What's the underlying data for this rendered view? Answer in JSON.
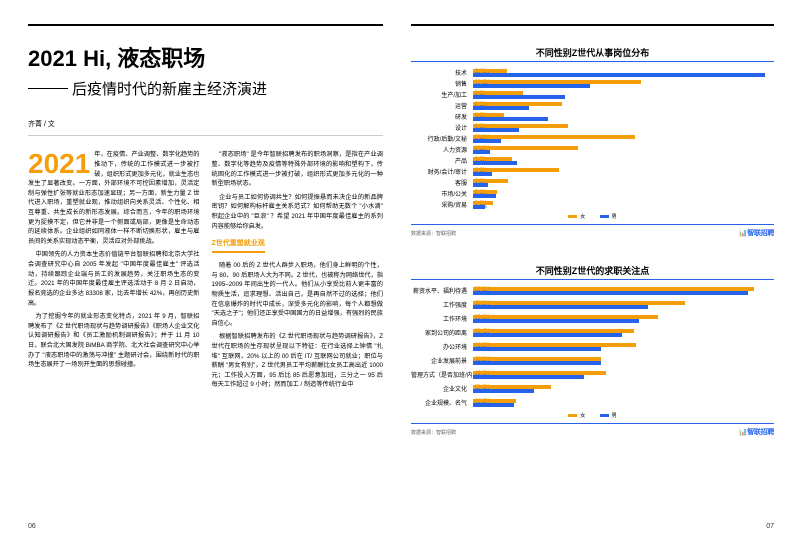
{
  "title_year": "2021",
  "title_prefix": " Hi, ",
  "title_main": "液态职场",
  "subtitle": "后疫情时代的新雇主经济演进",
  "author": "齐菁 / 文",
  "page_left": "06",
  "page_right": "07",
  "dropcap": "2021",
  "para_left_1": "年，在疫情、产业调整、数字化趋势的推动下，传统的工作模式进一步被打破，组织形式更加多元化，就业生态也发生了显著改变。一方面，外部环境不可控因素增加，灵活定制与弹性扩张等就业形态加速显现；另一方面，新生力量 Z 世代进入职场，重塑就业观，推动组织向关系灵活、个性化、相互尊重、共生成长的新形态发展。综合而言，今年的职场环境更为捉摸不定，但它并非是一个侧面或局部，更像是生命动态的延续体系。企业组织如同液体一样不断切换形状，雇主与雇员间的关系实现动态平衡，灵活应对外部挑战。",
  "para_left_2": "中国领先的人力资本生态价值链平台智联招聘和北京大学社会调查研究中心自 2005 年发起 \"中国年度最佳雇主\" 评选活动，持续跟踪企业端与员工的发展趋势，关注职场生态的变迁。2021 年的中国年度最佳雇主评选活动于 8 月 2 日启动，报名竞选的企业多达 83308 家，比去年增长 42%，再创历史新高。",
  "para_left_3": "为了挖掘今年的就业形态变化特点，2021 年 9 月，智联招聘发布了《Z 世代职场现状与趋势调研报告》《职场人企业文化认知调研报告》和《员工激励机制调研报告》；并于 11 月 10 日，联合北大国发院 BiMBA 商学院、北大社会调查研究中心举办了 \"液态职场中的激荡与冲撞\" 主题研讨会，围绕新时代的职场生态展开了一场别开生面的思想碰撞。",
  "para_right_1": "\"液态职场\" 是今年智联招聘发布的职场洞察，是指在产业调整、数字化等趋势及疫情等特殊外部环境的影响和塑构下，传统固化的工作模式进一步被打破，组织形式更加多元化的一种新型职场状态。",
  "para_right_2": "企业与员工如何协调共生？如何提振悬而未决企业的新品牌密钥？如何解构标杆雇主关系范式？如何帮助无数个 \"小水滴\" 积起企业中的 \"巨浪\" ？希望 2021 年中国年度最佳雇主的系列内容能够给你启发。",
  "section_head": "Z世代重塑就业观",
  "para_right_3": "随着 00 后的 Z 世代人群步入职场，他们身上鲜明的个性，与 80、90 后职场人大为不同。Z 世代，也被称为网络世代，指 1995–2009 年间出生的一代人。他们从小享受比前人更丰富的物质生活，追求理想、活出自己，是再自然不过的选择；他们在信息爆炸的时代中成长，深受多元化的影响，每个人都想做 \"天选之子\"；他们还正享受中国国力的日益增强，有强烈的民族自信心。",
  "para_right_4": "根据智联招聘发布的《Z 世代职场现状与趋势调研报告》，Z 世代在职场的生存现状呈现以下特征：在行业选择上钟情 \"扎堆\" 互联网，20% 以上的 00 后在 IT/ 互联网公司就业；职位与薪酬 \"男女有别\"，Z 世代男员工平均薪酬比女员工高出近 1000 元；工作投入方面，95 后比 85 后愿意加班，三分之一 95 后每天工作超过 9 小时；然而加工 / 制造等传统行业中",
  "legend_female": "女",
  "legend_male": "男",
  "brand": "智联招聘",
  "data_source": "数据来源：智联招聘",
  "chart1": {
    "title": "不同性别Z世代从事岗位分布",
    "max": 30,
    "color_female": "#f59e0b",
    "color_male": "#2563eb",
    "rows": [
      {
        "label": "技术",
        "f": 3.4,
        "m": 29.1
      },
      {
        "label": "销售",
        "f": 16.7,
        "m": 11.7
      },
      {
        "label": "生产/加工",
        "f": 5.0,
        "m": 9.2
      },
      {
        "label": "运营",
        "f": 8.9,
        "m": 5.6
      },
      {
        "label": "研发",
        "f": 3.1,
        "m": 7.5
      },
      {
        "label": "设计",
        "f": 9.5,
        "m": 4.6
      },
      {
        "label": "行政/后勤/文秘",
        "f": 16.1,
        "m": 2.8
      },
      {
        "label": "人力资源",
        "f": 10.5,
        "m": 1.7
      },
      {
        "label": "产品",
        "f": 3.9,
        "m": 4.4
      },
      {
        "label": "财务/会计/审计",
        "f": 8.6,
        "m": 1.9
      },
      {
        "label": "客服",
        "f": 3.5,
        "m": 1.5
      },
      {
        "label": "市场/公关",
        "f": 2.4,
        "m": 2.3
      },
      {
        "label": "采购/贸易",
        "f": 2.0,
        "m": 1.2
      }
    ]
  },
  "chart2": {
    "title": "不同性别Z世代的求职关注点",
    "max": 100,
    "color_female": "#f59e0b",
    "color_male": "#2563eb",
    "rows": [
      {
        "label": "薪资水平、福利待遇",
        "f": 93.5,
        "m": 91.3
      },
      {
        "label": "工作强度",
        "f": 70.5,
        "m": 58.0
      },
      {
        "label": "工作环境",
        "f": 61.6,
        "m": 55.0
      },
      {
        "label": "家到公司的距离",
        "f": 53.4,
        "m": 49.4
      },
      {
        "label": "办公环境",
        "f": 54.2,
        "m": 42.6
      },
      {
        "label": "企业发展前景",
        "f": 42.6,
        "m": 42.6
      },
      {
        "label": "管理方式（是否加班/内卷等）",
        "f": 44.3,
        "m": 36.8
      },
      {
        "label": "企业文化",
        "f": 25.9,
        "m": 20.3
      },
      {
        "label": "企业规模、名气",
        "f": 14.4,
        "m": 13.7
      }
    ]
  }
}
